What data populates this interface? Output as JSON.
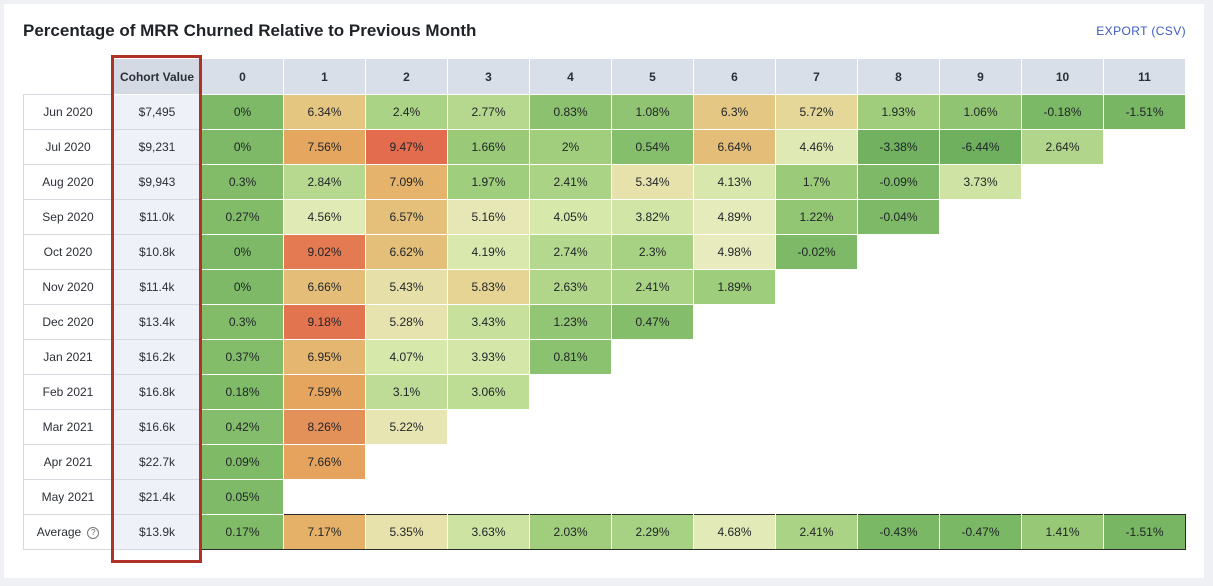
{
  "header": {
    "title": "Percentage of MRR Churned Relative to Previous Month",
    "export_label": "EXPORT (CSV)"
  },
  "table": {
    "cohort_header": "Cohort Value",
    "period_headers": [
      "0",
      "1",
      "2",
      "3",
      "4",
      "5",
      "6",
      "7",
      "8",
      "9",
      "10",
      "11"
    ],
    "rows": [
      {
        "label": "Jun 2020",
        "cohort_value": "$7,495",
        "cells": [
          "0%",
          "6.34%",
          "2.4%",
          "2.77%",
          "0.83%",
          "1.08%",
          "6.3%",
          "5.72%",
          "1.93%",
          "1.06%",
          "-0.18%",
          "-1.51%"
        ]
      },
      {
        "label": "Jul 2020",
        "cohort_value": "$9,231",
        "cells": [
          "0%",
          "7.56%",
          "9.47%",
          "1.66%",
          "2%",
          "0.54%",
          "6.64%",
          "4.46%",
          "-3.38%",
          "-6.44%",
          "2.64%"
        ]
      },
      {
        "label": "Aug 2020",
        "cohort_value": "$9,943",
        "cells": [
          "0.3%",
          "2.84%",
          "7.09%",
          "1.97%",
          "2.41%",
          "5.34%",
          "4.13%",
          "1.7%",
          "-0.09%",
          "3.73%"
        ]
      },
      {
        "label": "Sep 2020",
        "cohort_value": "$11.0k",
        "cells": [
          "0.27%",
          "4.56%",
          "6.57%",
          "5.16%",
          "4.05%",
          "3.82%",
          "4.89%",
          "1.22%",
          "-0.04%"
        ]
      },
      {
        "label": "Oct 2020",
        "cohort_value": "$10.8k",
        "cells": [
          "0%",
          "9.02%",
          "6.62%",
          "4.19%",
          "2.74%",
          "2.3%",
          "4.98%",
          "-0.02%"
        ]
      },
      {
        "label": "Nov 2020",
        "cohort_value": "$11.4k",
        "cells": [
          "0%",
          "6.66%",
          "5.43%",
          "5.83%",
          "2.63%",
          "2.41%",
          "1.89%"
        ]
      },
      {
        "label": "Dec 2020",
        "cohort_value": "$13.4k",
        "cells": [
          "0.3%",
          "9.18%",
          "5.28%",
          "3.43%",
          "1.23%",
          "0.47%"
        ]
      },
      {
        "label": "Jan 2021",
        "cohort_value": "$16.2k",
        "cells": [
          "0.37%",
          "6.95%",
          "4.07%",
          "3.93%",
          "0.81%"
        ]
      },
      {
        "label": "Feb 2021",
        "cohort_value": "$16.8k",
        "cells": [
          "0.18%",
          "7.59%",
          "3.1%",
          "3.06%"
        ]
      },
      {
        "label": "Mar 2021",
        "cohort_value": "$16.6k",
        "cells": [
          "0.42%",
          "8.26%",
          "5.22%"
        ]
      },
      {
        "label": "Apr 2021",
        "cohort_value": "$22.7k",
        "cells": [
          "0.09%",
          "7.66%"
        ]
      },
      {
        "label": "May 2021",
        "cohort_value": "$21.4k",
        "cells": [
          "0.05%"
        ]
      }
    ],
    "average": {
      "label": "Average",
      "help_icon": "question-circle-icon",
      "cohort_value": "$13.9k",
      "cells": [
        "0.17%",
        "7.17%",
        "5.35%",
        "3.63%",
        "2.03%",
        "2.29%",
        "4.68%",
        "2.41%",
        "-0.43%",
        "-0.47%",
        "1.41%",
        "-1.51%"
      ]
    }
  },
  "colors": {
    "highlight_border": "#b03125",
    "link": "#3b5bbd",
    "scale_low": "#6fb05e",
    "scale_mid": "#e8ebbd",
    "scale_high": "#e26b4d"
  }
}
